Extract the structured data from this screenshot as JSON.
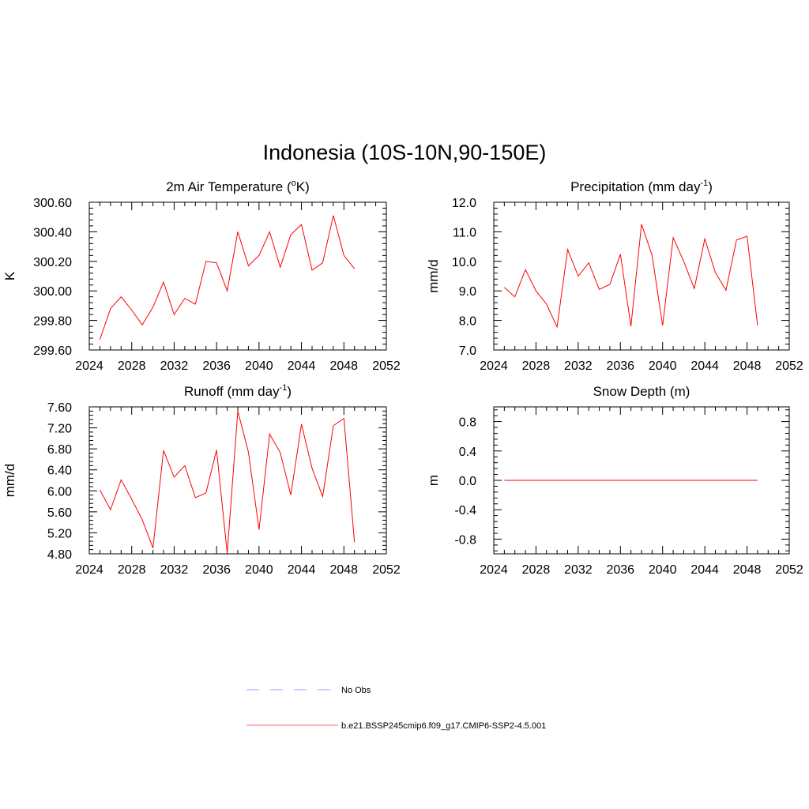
{
  "figure": {
    "title": "Indonesia (10S-10N,90-150E)"
  },
  "legend": [
    {
      "label": "No Obs",
      "color": "#9999ff",
      "dash": true
    },
    {
      "label": "b.e21.BSSP245cmip6.f09_g17.CMIP6-SSP2-4.5.001",
      "color": "#ff6666",
      "dash": false
    }
  ],
  "chart_data": [
    {
      "type": "line",
      "title_main": "2m Air Temperature (",
      "title_sup": "o",
      "title_end": "K)",
      "ylabel": "K",
      "xlim": [
        2024,
        2052
      ],
      "xticks": [
        2024,
        2028,
        2032,
        2036,
        2040,
        2044,
        2048,
        2052
      ],
      "ylim": [
        299.6,
        300.6
      ],
      "yticks": [
        299.6,
        299.8,
        300.0,
        300.2,
        300.4,
        300.6
      ],
      "ytick_labels": [
        "299.60",
        "299.80",
        "300.00",
        "300.20",
        "300.40",
        "300.60"
      ],
      "series": [
        {
          "color": "#ff0000",
          "x": [
            2025,
            2026,
            2027,
            2028,
            2029,
            2030,
            2031,
            2032,
            2033,
            2034,
            2035,
            2036,
            2037,
            2038,
            2039,
            2040,
            2041,
            2042,
            2043,
            2044,
            2045,
            2046,
            2047,
            2048,
            2049
          ],
          "values": [
            299.67,
            299.88,
            299.96,
            299.87,
            299.77,
            299.89,
            300.06,
            299.84,
            299.95,
            299.91,
            300.2,
            300.19,
            300.0,
            300.4,
            300.17,
            300.24,
            300.4,
            300.16,
            300.38,
            300.45,
            300.14,
            300.19,
            300.51,
            300.24,
            300.15
          ]
        }
      ]
    },
    {
      "type": "line",
      "title_main": "Precipitation (mm day",
      "title_sup": "-1",
      "title_end": ")",
      "ylabel": "mm/d",
      "xlim": [
        2024,
        2052
      ],
      "xticks": [
        2024,
        2028,
        2032,
        2036,
        2040,
        2044,
        2048,
        2052
      ],
      "ylim": [
        7.0,
        12.0
      ],
      "yticks": [
        7.0,
        8.0,
        9.0,
        10.0,
        11.0,
        12.0
      ],
      "ytick_labels": [
        "7.0",
        "8.0",
        "9.0",
        "10.0",
        "11.0",
        "12.0"
      ],
      "series": [
        {
          "color": "#ff0000",
          "x": [
            2025,
            2026,
            2027,
            2028,
            2029,
            2030,
            2031,
            2032,
            2033,
            2034,
            2035,
            2036,
            2037,
            2038,
            2039,
            2040,
            2041,
            2042,
            2043,
            2044,
            2045,
            2046,
            2047,
            2048,
            2049
          ],
          "values": [
            9.12,
            8.8,
            9.72,
            9.0,
            8.55,
            7.78,
            10.4,
            9.5,
            9.95,
            9.05,
            9.22,
            10.24,
            7.8,
            11.26,
            10.2,
            7.83,
            10.8,
            10.0,
            9.08,
            10.76,
            9.62,
            9.02,
            10.72,
            10.85,
            7.83
          ]
        }
      ]
    },
    {
      "type": "line",
      "title_main": "Runoff (mm day",
      "title_sup": "-1",
      "title_end": ")",
      "ylabel": "mm/d",
      "xlim": [
        2024,
        2052
      ],
      "xticks": [
        2024,
        2028,
        2032,
        2036,
        2040,
        2044,
        2048,
        2052
      ],
      "ylim": [
        4.8,
        7.6
      ],
      "yticks": [
        4.8,
        5.2,
        5.6,
        6.0,
        6.4,
        6.8,
        7.2,
        7.6
      ],
      "ytick_labels": [
        "4.80",
        "5.20",
        "5.60",
        "6.00",
        "6.40",
        "6.80",
        "7.20",
        "7.60"
      ],
      "series": [
        {
          "color": "#ff0000",
          "x": [
            2025,
            2026,
            2027,
            2028,
            2029,
            2030,
            2031,
            2032,
            2033,
            2034,
            2035,
            2036,
            2037,
            2038,
            2039,
            2040,
            2041,
            2042,
            2043,
            2044,
            2045,
            2046,
            2047,
            2048,
            2049
          ],
          "values": [
            6.02,
            5.64,
            6.21,
            5.84,
            5.45,
            4.91,
            6.77,
            6.26,
            6.48,
            5.87,
            5.96,
            6.78,
            4.81,
            7.52,
            6.74,
            5.26,
            7.08,
            6.73,
            5.92,
            7.27,
            6.43,
            5.89,
            7.24,
            7.38,
            5.02
          ]
        }
      ]
    },
    {
      "type": "line",
      "title_main": "Snow Depth (m)",
      "title_sup": "",
      "title_end": "",
      "ylabel": "m",
      "xlim": [
        2024,
        2052
      ],
      "xticks": [
        2024,
        2028,
        2032,
        2036,
        2040,
        2044,
        2048,
        2052
      ],
      "ylim": [
        -1.0,
        1.0
      ],
      "yticks": [
        -0.8,
        -0.4,
        0.0,
        0.4,
        0.8
      ],
      "ytick_labels": [
        "-0.8",
        "-0.4",
        "0.0",
        "0.4",
        "0.8"
      ],
      "series": [
        {
          "color": "#ff0000",
          "x": [
            2025,
            2026,
            2027,
            2028,
            2029,
            2030,
            2031,
            2032,
            2033,
            2034,
            2035,
            2036,
            2037,
            2038,
            2039,
            2040,
            2041,
            2042,
            2043,
            2044,
            2045,
            2046,
            2047,
            2048,
            2049
          ],
          "values": [
            0,
            0,
            0,
            0,
            0,
            0,
            0,
            0,
            0,
            0,
            0,
            0,
            0,
            0,
            0,
            0,
            0,
            0,
            0,
            0,
            0,
            0,
            0,
            0,
            0
          ]
        }
      ]
    }
  ]
}
